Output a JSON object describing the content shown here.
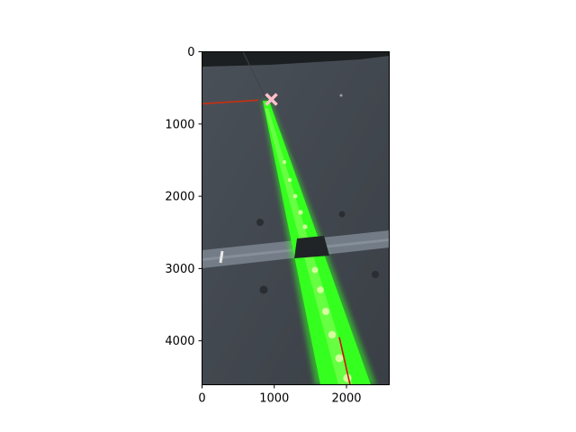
{
  "chart_data": {
    "type": "scatter",
    "title": "",
    "xlabel": "",
    "ylabel": "",
    "xlim": [
      0,
      2592
    ],
    "ylim": [
      4608,
      0
    ],
    "y_inverted": true,
    "x_ticks": [
      0,
      1000,
      2000
    ],
    "y_ticks": [
      0,
      1000,
      2000,
      3000,
      4000
    ],
    "x_tick_labels": [
      "0",
      "1000",
      "2000"
    ],
    "y_tick_labels": [
      "0",
      "1000",
      "2000",
      "3000",
      "4000"
    ],
    "grid": false,
    "background_image": "camera photo of a dark floor tile with a glowing green LED light strip running from the upper middle toward the lower right, crossing a horizontal metal joint strip",
    "series": [
      {
        "type": "point",
        "marker": "x-marker",
        "color": "#ffc0cb",
        "points": [
          {
            "x": 960,
            "y": 660
          }
        ]
      },
      {
        "type": "line",
        "color": "#d01010",
        "points": [
          {
            "x": 1900,
            "y": 3950
          },
          {
            "x": 2050,
            "y": 4608
          }
        ]
      },
      {
        "type": "line",
        "color": "#c83010",
        "points": [
          {
            "x": 0,
            "y": 720
          },
          {
            "x": 780,
            "y": 670
          }
        ]
      }
    ]
  }
}
